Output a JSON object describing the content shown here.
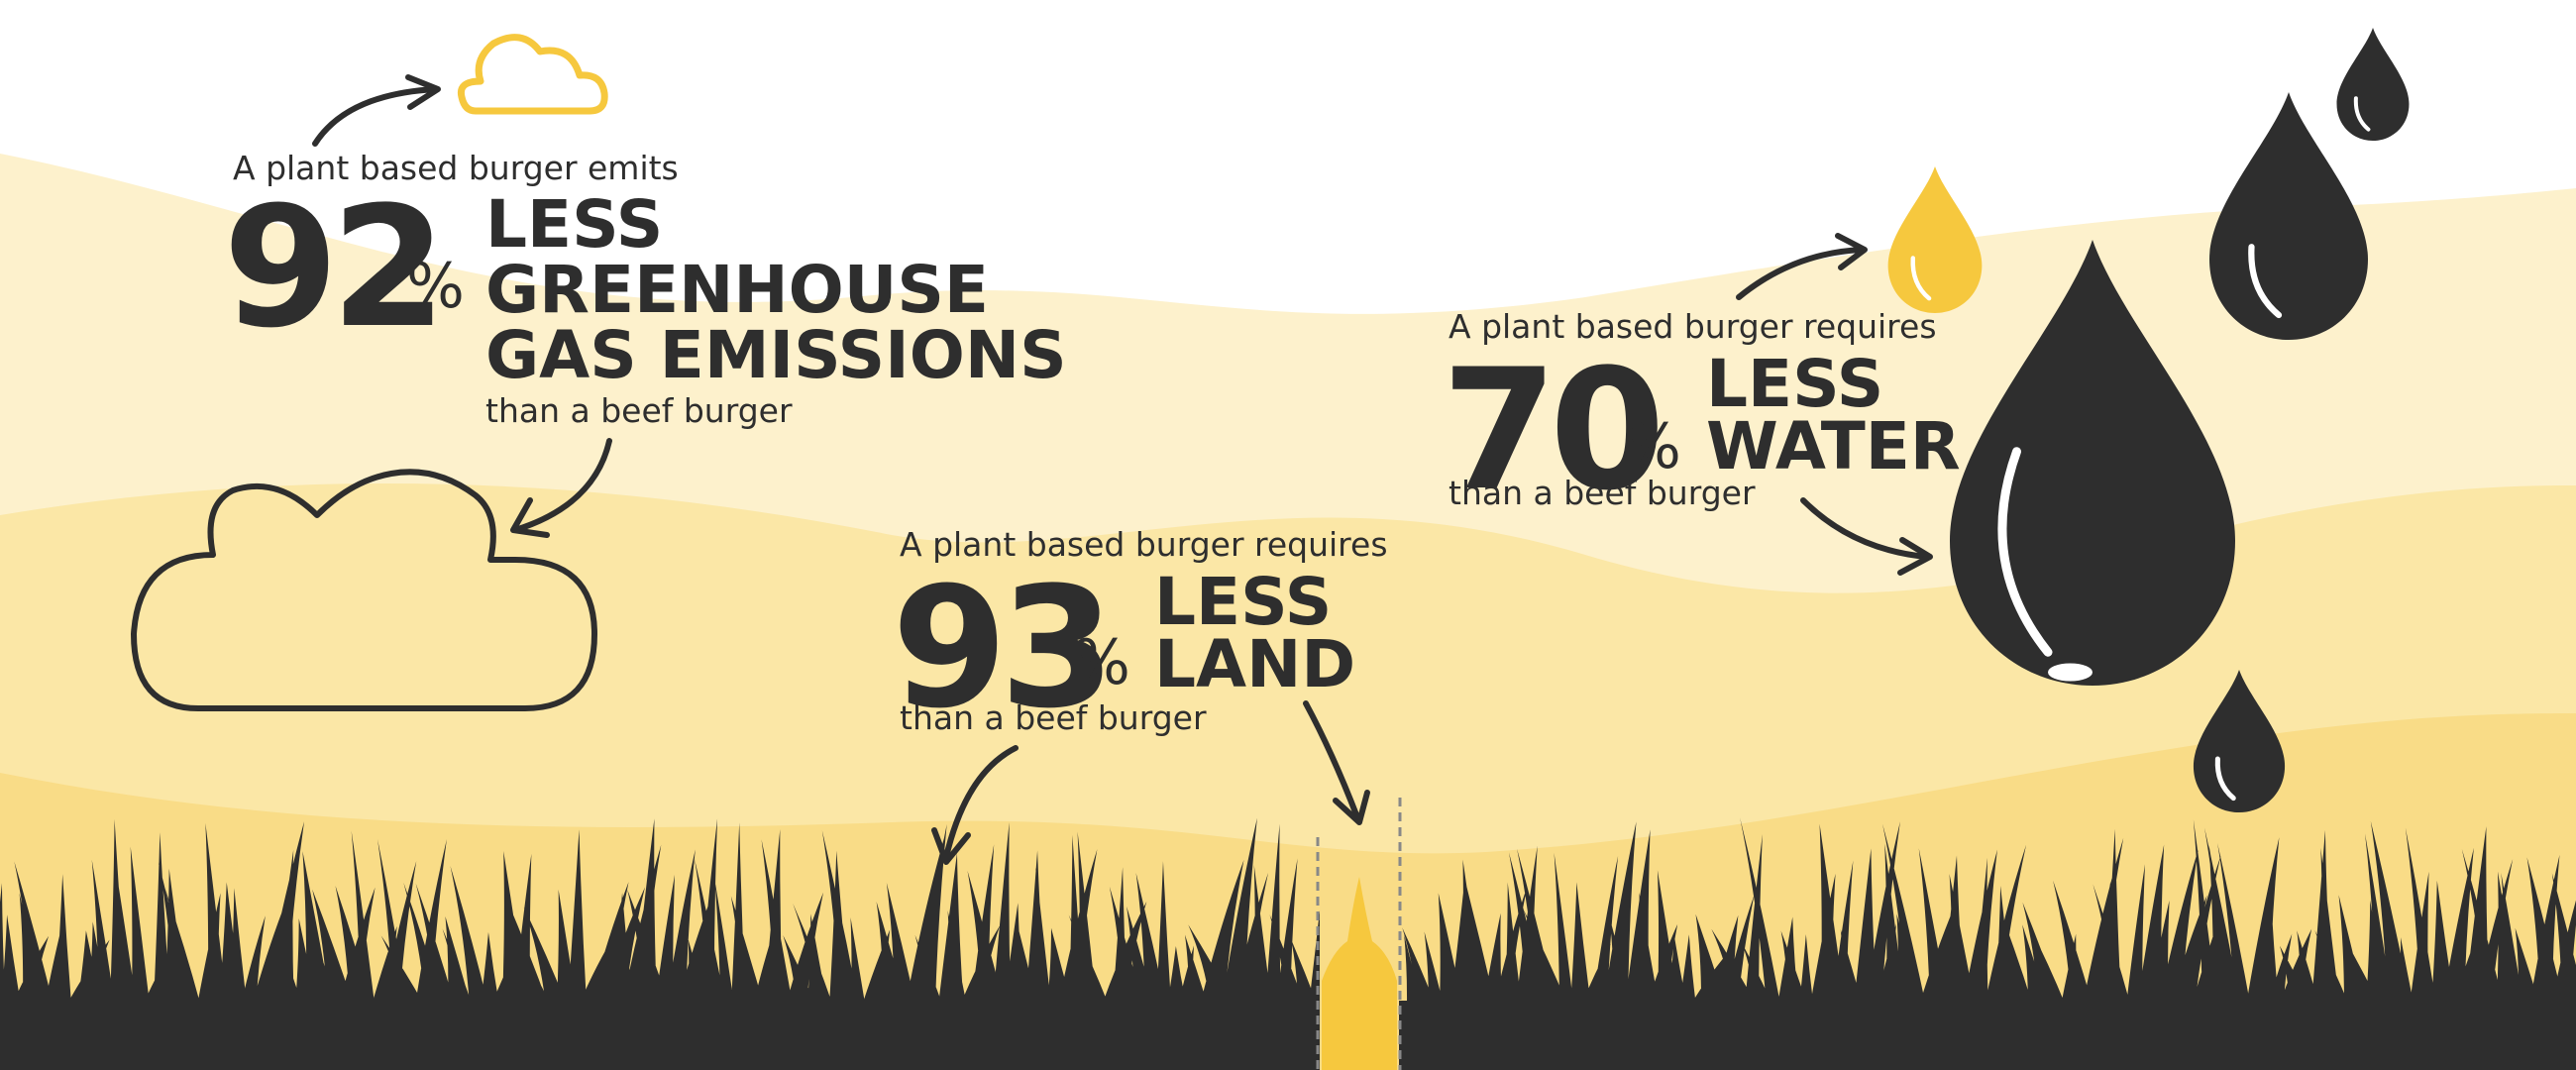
{
  "colors": {
    "background": "#ffffff",
    "band_light": "#fdf1cc",
    "band_mid": "#fbe7a6",
    "band_deep": "#f9dc87",
    "dark": "#2e2e2e",
    "accent_yellow": "#f6c83e"
  },
  "icons": [
    "arrow-icon",
    "cloud-icon",
    "water-drop-icon",
    "grass-icon",
    "grass-blade-icon"
  ],
  "stats": {
    "emissions": {
      "intro": "A plant based burger emits",
      "number": "92",
      "percent": "%",
      "headline_lines": [
        "LESS",
        "GREENHOUSE",
        "GAS EMISSIONS"
      ],
      "comparison": "than a beef burger"
    },
    "land": {
      "intro": "A plant based burger requires",
      "number": "93",
      "percent": "%",
      "headline_lines": [
        "LESS",
        "LAND"
      ],
      "comparison": "than a beef burger"
    },
    "water": {
      "intro": "A plant based burger requires",
      "number": "70",
      "percent": "%",
      "headline_lines": [
        "LESS",
        "WATER"
      ],
      "comparison": "than a beef burger"
    }
  }
}
